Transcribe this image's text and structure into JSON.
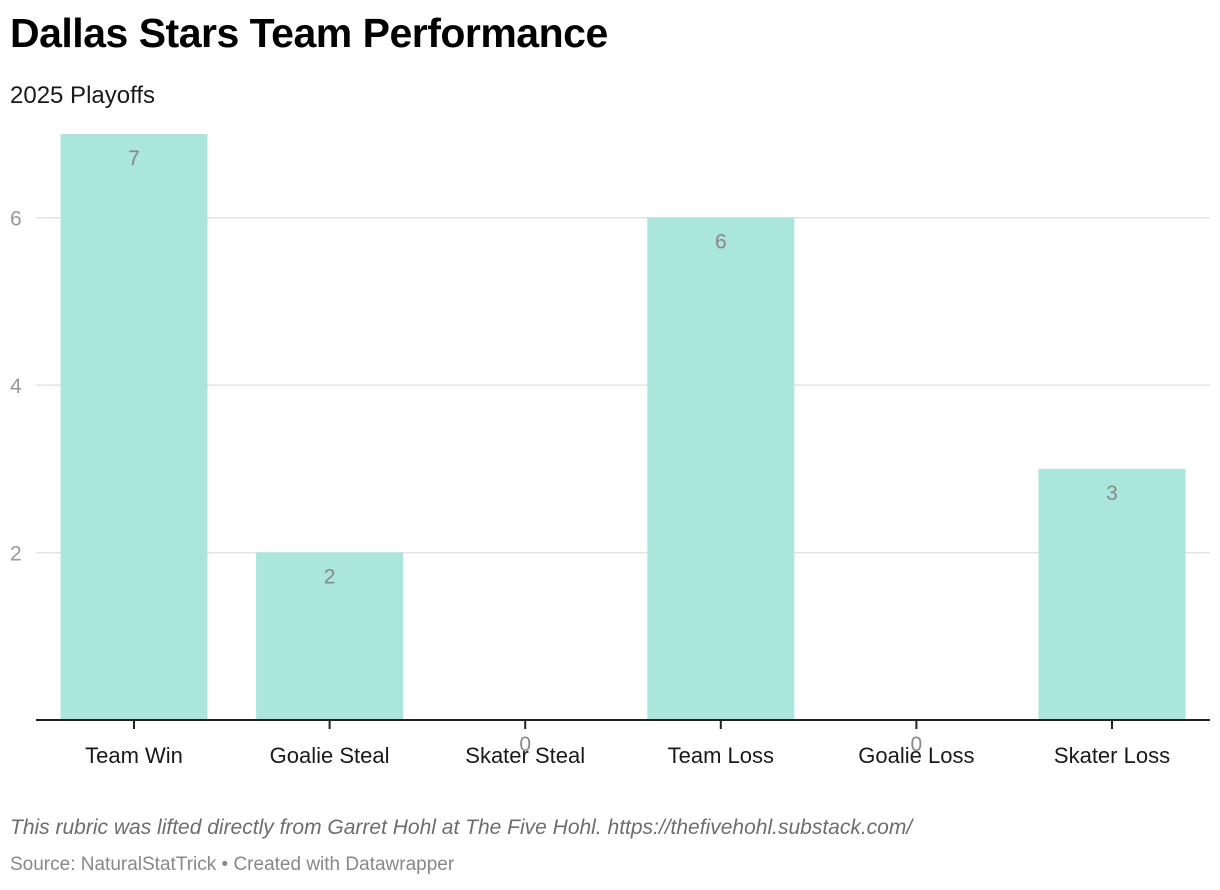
{
  "header": {
    "title": "Dallas Stars Team Performance",
    "subtitle": "2025 Playoffs"
  },
  "footer": {
    "note": "This rubric was lifted directly from Garret Hohl at The Five Hohl. https://thefivehohl.substack.com/",
    "source": "Source: NaturalStatTrick • Created with Datawrapper"
  },
  "colors": {
    "bar": "#abe6dc",
    "grid": "#e2e2e2",
    "axis": "#222222",
    "tick_label": "#999999",
    "data_label": "#888888",
    "category_label": "#1a1a1a"
  },
  "chart_data": {
    "type": "bar",
    "title": "Dallas Stars Team Performance",
    "subtitle": "2025 Playoffs",
    "categories": [
      "Team Win",
      "Goalie Steal",
      "Skater Steal",
      "Team Loss",
      "Goalie Loss",
      "Skater Loss"
    ],
    "values": [
      7,
      2,
      0,
      6,
      0,
      3
    ],
    "data_labels": [
      "7",
      "2",
      "0",
      "6",
      "0",
      "3"
    ],
    "ylim": [
      0,
      7
    ],
    "yticks": [
      2,
      4,
      6
    ],
    "ytick_labels": [
      "2",
      "4",
      "6"
    ],
    "grid": true,
    "legend": "none",
    "xlabel": "",
    "ylabel": ""
  }
}
